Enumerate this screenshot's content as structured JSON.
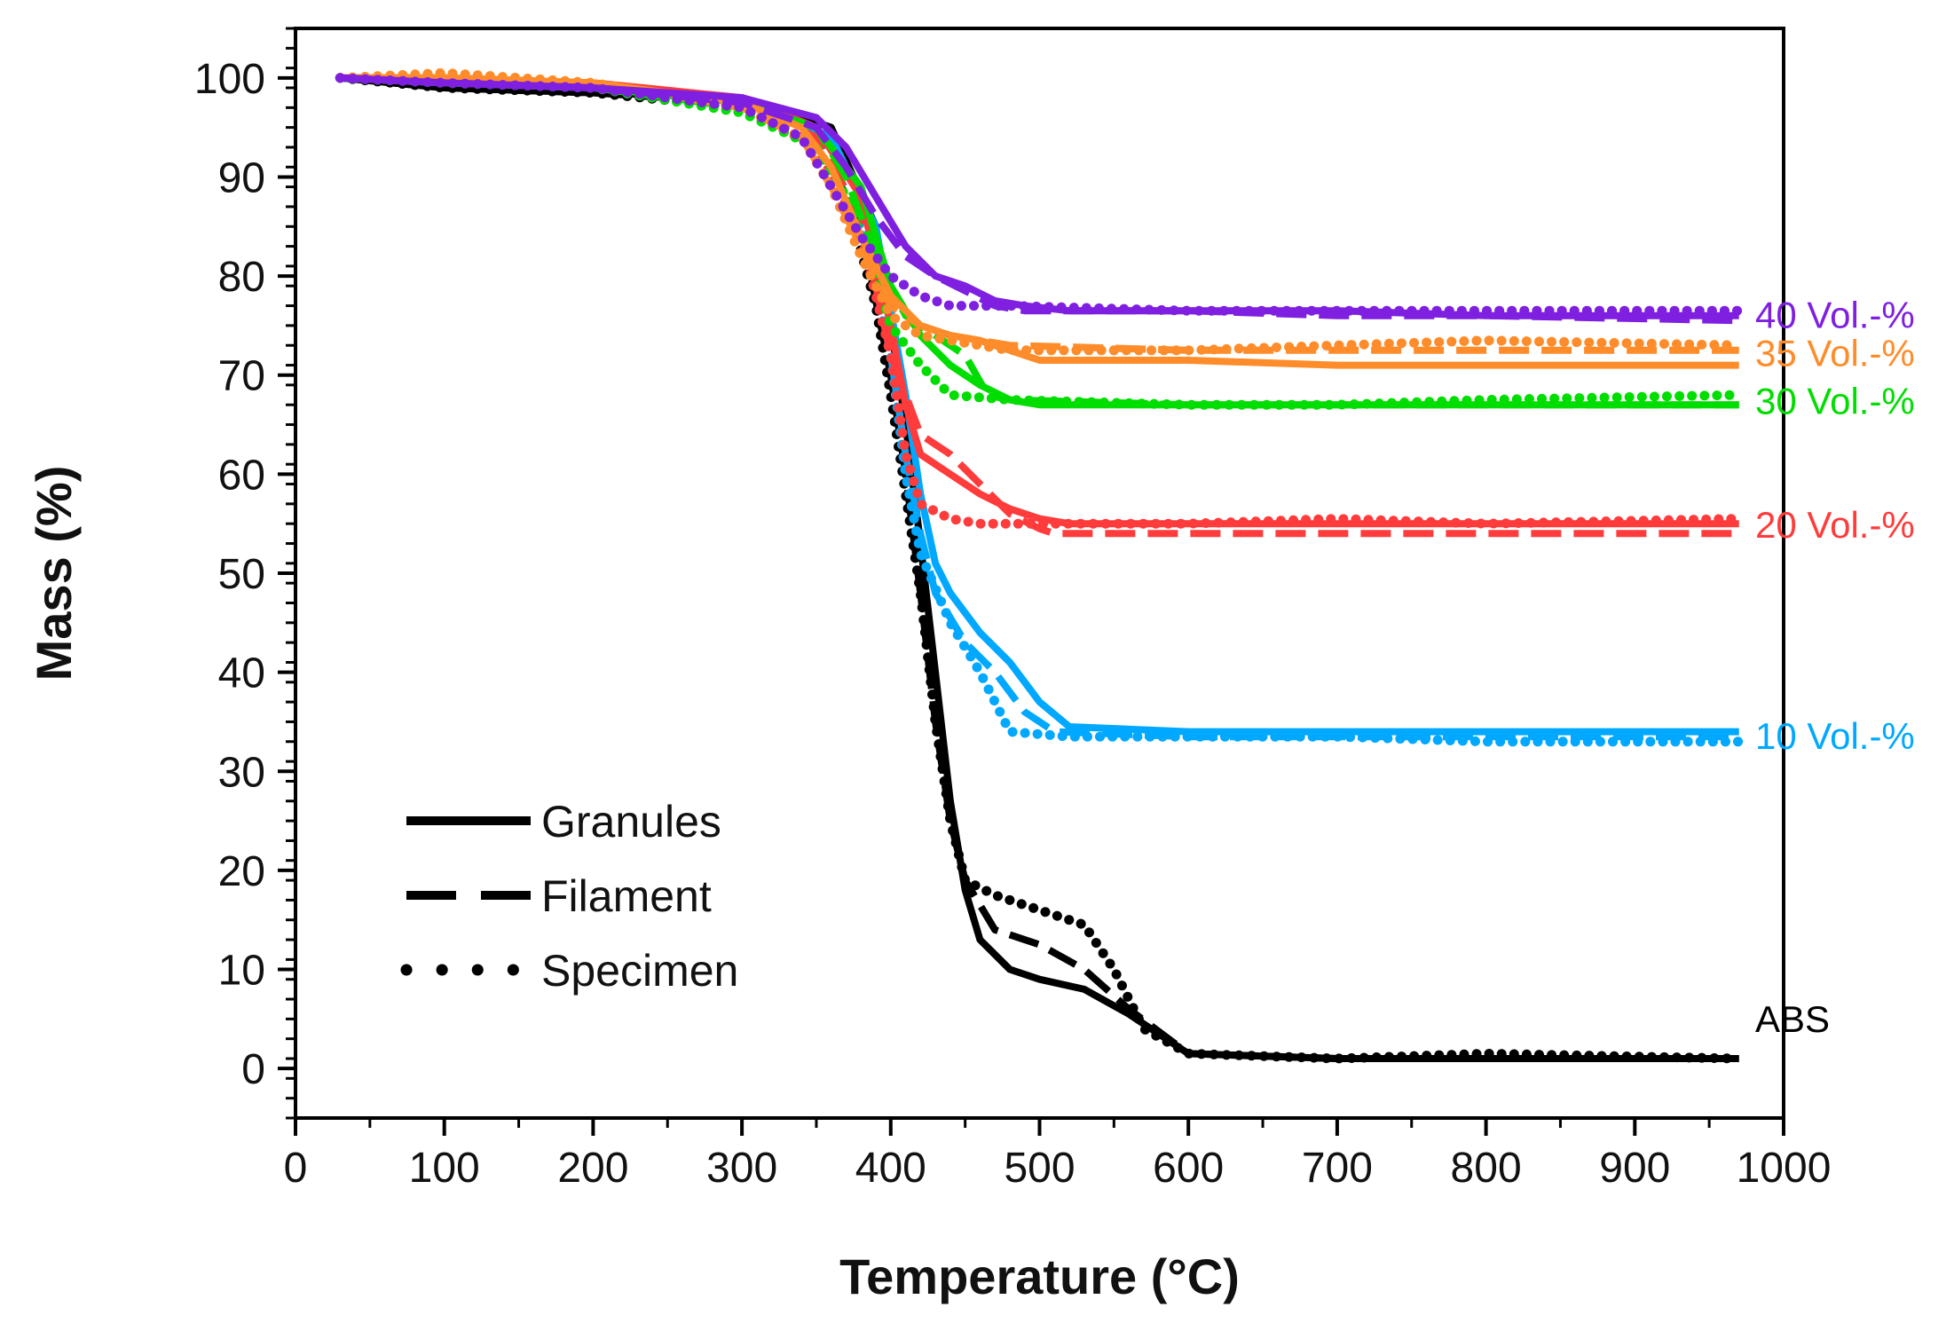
{
  "chart_data": {
    "type": "line",
    "title": "",
    "xlabel": "Temperature (°C)",
    "ylabel": "Mass (%)",
    "xlim": [
      0,
      1000
    ],
    "ylim": [
      -5,
      105
    ],
    "xticks": [
      0,
      100,
      200,
      300,
      400,
      500,
      600,
      700,
      800,
      900,
      1000
    ],
    "yticks": [
      0,
      10,
      20,
      30,
      40,
      50,
      60,
      70,
      80,
      90,
      100
    ],
    "legend": {
      "placement": "bottom-left",
      "entries": [
        {
          "label": "Granules",
          "style": "solid"
        },
        {
          "label": "Filament",
          "style": "dashed"
        },
        {
          "label": "Specimen",
          "style": "dotted"
        }
      ]
    },
    "materials": [
      {
        "name": "ABS",
        "label": "ABS",
        "color": "#000000",
        "series": [
          {
            "form": "Granules",
            "x": [
              30,
              100,
              200,
              300,
              360,
              390,
              410,
              420,
              430,
              440,
              450,
              460,
              480,
              500,
              530,
              560,
              600,
              700,
              800,
              970
            ],
            "y": [
              100,
              99,
              98.5,
              98,
              95,
              85,
              65,
              53,
              40,
              27,
              18,
              13,
              10,
              9,
              8,
              5.5,
              1.5,
              1,
              1,
              1
            ]
          },
          {
            "form": "Filament",
            "x": [
              30,
              100,
              200,
              300,
              350,
              380,
              400,
              410,
              420,
              430,
              440,
              450,
              470,
              500,
              530,
              560,
              600,
              700,
              800,
              970
            ],
            "y": [
              100,
              99,
              98.5,
              97.5,
              94,
              85,
              70,
              60,
              48,
              35,
              25,
              19,
              14,
              12.5,
              10,
              6,
              1.5,
              1,
              1,
              1
            ]
          },
          {
            "form": "Specimen",
            "x": [
              30,
              100,
              200,
              300,
              350,
              370,
              390,
              400,
              410,
              420,
              430,
              440,
              450,
              470,
              500,
              530,
              550,
              570,
              600,
              700,
              800,
              970
            ],
            "y": [
              100,
              99,
              98.5,
              97,
              93,
              88,
              77,
              68,
              58,
              48,
              35,
              25,
              19,
              17.5,
              16,
              14.5,
              10,
              4,
              1.5,
              1,
              1.5,
              1
            ]
          }
        ]
      },
      {
        "name": "10 Vol.-%",
        "label": "10 Vol.-%",
        "color": "#00a8ff",
        "series": [
          {
            "form": "Granules",
            "x": [
              30,
              100,
              200,
              300,
              360,
              390,
              410,
              420,
              430,
              440,
              460,
              480,
              500,
              520,
              600,
              700,
              800,
              970
            ],
            "y": [
              100,
              99.5,
              99,
              98,
              94,
              85,
              68,
              58,
              51,
              48,
              44,
              41,
              37,
              34.5,
              34,
              34,
              34,
              34
            ]
          },
          {
            "form": "Filament",
            "x": [
              30,
              100,
              200,
              300,
              350,
              380,
              400,
              410,
              420,
              430,
              450,
              470,
              490,
              510,
              600,
              700,
              800,
              970
            ],
            "y": [
              100,
              99.5,
              99,
              97.5,
              94,
              86,
              72,
              62,
              54,
              48,
              43,
              40,
              36,
              34,
              33.5,
              33.5,
              33.5,
              33.5
            ]
          },
          {
            "form": "Specimen",
            "x": [
              30,
              100,
              200,
              300,
              350,
              380,
              400,
              410,
              420,
              440,
              460,
              470,
              480,
              520,
              600,
              700,
              800,
              970
            ],
            "y": [
              100,
              99.5,
              99,
              97,
              93,
              85,
              72,
              60,
              52,
              45,
              40,
              37,
              34,
              33.5,
              33.5,
              33.5,
              33,
              33
            ]
          }
        ]
      },
      {
        "name": "20 Vol.-%",
        "label": "20 Vol.-%",
        "color": "#ff3b3b",
        "series": [
          {
            "form": "Granules",
            "x": [
              30,
              100,
              200,
              300,
              350,
              380,
              400,
              410,
              420,
              440,
              460,
              480,
              500,
              520,
              600,
              700,
              800,
              970
            ],
            "y": [
              100,
              100,
              99.5,
              98,
              95,
              88,
              75,
              67,
              62,
              60,
              58,
              56.5,
              55.5,
              55,
              55,
              55,
              55,
              55
            ]
          },
          {
            "form": "Filament",
            "x": [
              30,
              100,
              200,
              300,
              350,
              380,
              400,
              420,
              440,
              460,
              480,
              500,
              510,
              600,
              700,
              800,
              970
            ],
            "y": [
              100,
              100,
              99.5,
              97.5,
              94,
              86,
              72,
              64,
              62,
              59,
              56,
              54.5,
              54,
              54,
              54,
              54,
              54
            ]
          },
          {
            "form": "Specimen",
            "x": [
              30,
              100,
              200,
              300,
              350,
              380,
              400,
              410,
              420,
              440,
              460,
              480,
              520,
              600,
              700,
              800,
              970
            ],
            "y": [
              100,
              100,
              99,
              97,
              93,
              84,
              72,
              62,
              57,
              55.5,
              55,
              55,
              55,
              55,
              55.5,
              55,
              55.5
            ]
          }
        ]
      },
      {
        "name": "30 Vol.-%",
        "label": "30 Vol.-%",
        "color": "#00dd00",
        "series": [
          {
            "form": "Granules",
            "x": [
              30,
              100,
              200,
              300,
              350,
              380,
              400,
              420,
              440,
              460,
              480,
              500,
              600,
              700,
              800,
              970
            ],
            "y": [
              100,
              99.5,
              99,
              97.5,
              95,
              89,
              79,
              74,
              71,
              69,
              67.5,
              67,
              67,
              67,
              67,
              67
            ]
          },
          {
            "form": "Filament",
            "x": [
              30,
              100,
              200,
              300,
              350,
              370,
              390,
              410,
              430,
              450,
              465,
              480,
              600,
              700,
              800,
              970
            ],
            "y": [
              100,
              99.5,
              99,
              97,
              95,
              90,
              82,
              76,
              74,
              72,
              68,
              67.5,
              67,
              67,
              67,
              67
            ]
          },
          {
            "form": "Specimen",
            "x": [
              30,
              100,
              200,
              300,
              350,
              370,
              390,
              400,
              420,
              440,
              480,
              600,
              700,
              800,
              970
            ],
            "y": [
              100,
              99.5,
              99,
              96.5,
              93,
              88,
              80,
              75,
              71,
              68,
              67.5,
              67,
              67,
              67.5,
              68
            ]
          }
        ]
      },
      {
        "name": "35 Vol.-%",
        "label": "35 Vol.-%",
        "color": "#ff8c2a",
        "series": [
          {
            "form": "Granules",
            "x": [
              30,
              100,
              200,
              300,
              340,
              360,
              380,
              400,
              420,
              440,
              460,
              480,
              500,
              600,
              700,
              800,
              970
            ],
            "y": [
              100,
              100,
              99.5,
              97.5,
              95,
              91,
              84,
              78,
              75,
              74,
              73.5,
              72.5,
              71.5,
              71.5,
              71,
              71,
              71
            ]
          },
          {
            "form": "Filament",
            "x": [
              30,
              100,
              200,
              300,
              340,
              360,
              380,
              400,
              420,
              440,
              460,
              480,
              600,
              700,
              800,
              970
            ],
            "y": [
              100,
              100,
              99.5,
              97,
              94,
              89,
              83,
              77,
              75,
              74,
              73.5,
              73,
              72.5,
              72.5,
              72.5,
              72.5
            ]
          },
          {
            "form": "Specimen",
            "x": [
              30,
              100,
              200,
              300,
              340,
              360,
              380,
              400,
              420,
              440,
              460,
              480,
              600,
              700,
              800,
              970
            ],
            "y": [
              100,
              100.5,
              99.5,
              97,
              94,
              89,
              82,
              76,
              74,
              73.5,
              73,
              72.5,
              72.5,
              73,
              73.5,
              73
            ]
          }
        ]
      },
      {
        "name": "40 Vol.-%",
        "label": "40 Vol.-%",
        "color": "#7f1fe0",
        "series": [
          {
            "form": "Granules",
            "x": [
              30,
              100,
              200,
              300,
              350,
              370,
              390,
              410,
              430,
              450,
              470,
              490,
              520,
              600,
              700,
              800,
              970
            ],
            "y": [
              100,
              99.5,
              99,
              98,
              96,
              93,
              88,
              83,
              80,
              79,
              77.5,
              77,
              76.5,
              76.5,
              76.5,
              76,
              76
            ]
          },
          {
            "form": "Filament",
            "x": [
              30,
              100,
              200,
              300,
              350,
              370,
              390,
              410,
              430,
              450,
              470,
              490,
              600,
              700,
              800,
              970
            ],
            "y": [
              100,
              99.5,
              99,
              97.5,
              95,
              91,
              86,
              82,
              80,
              78.5,
              77,
              76.5,
              76.5,
              76,
              76,
              75.5
            ]
          },
          {
            "form": "Specimen",
            "x": [
              30,
              100,
              200,
              300,
              340,
              360,
              380,
              400,
              420,
              440,
              480,
              600,
              700,
              800,
              970
            ],
            "y": [
              100,
              99.5,
              99,
              97,
              94,
              89,
              84,
              80,
              78,
              77,
              77,
              76.5,
              76.5,
              76.5,
              76.5
            ]
          }
        ]
      }
    ]
  }
}
